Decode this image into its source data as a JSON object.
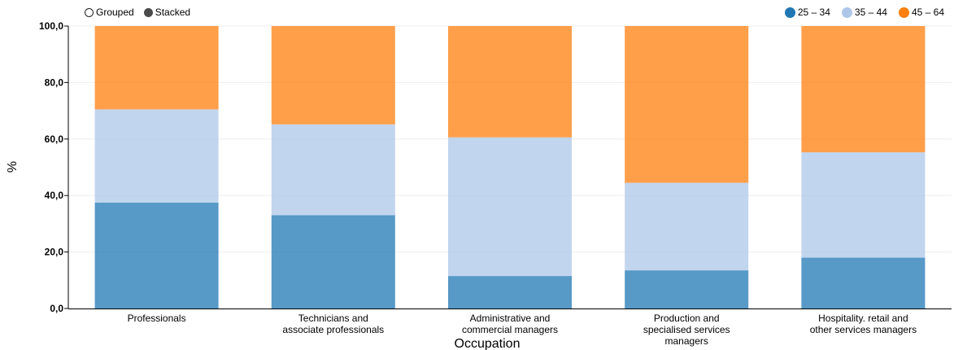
{
  "controls": {
    "grouped_label": "Grouped",
    "stacked_label": "Stacked",
    "selected": "Stacked"
  },
  "chart_data": {
    "type": "bar",
    "stacked": true,
    "xlabel": "Occupation",
    "ylabel": "%",
    "ylim": [
      0,
      100
    ],
    "yticks": [
      "0,0",
      "20,0",
      "40,0",
      "60,0",
      "80,0",
      "100,0"
    ],
    "grid": true,
    "legend_position": "top-right",
    "categories": [
      [
        "Professionals"
      ],
      [
        "Technicians and",
        "associate professionals"
      ],
      [
        "Administrative and",
        "commercial managers"
      ],
      [
        "Production and",
        "specialised services",
        "managers"
      ],
      [
        "Hospitality. retail and",
        "other services managers"
      ]
    ],
    "series": [
      {
        "name": "25 – 34",
        "color": "#1f77b4",
        "values": [
          37.5,
          33.0,
          11.5,
          13.5,
          18.0
        ]
      },
      {
        "name": "35 – 44",
        "color": "#aec7e8",
        "values": [
          33.0,
          32.2,
          49.1,
          31.0,
          37.3
        ]
      },
      {
        "name": "45 – 64",
        "color": "#ff7f0e",
        "values": [
          29.5,
          34.8,
          39.4,
          55.5,
          44.7
        ]
      }
    ]
  }
}
